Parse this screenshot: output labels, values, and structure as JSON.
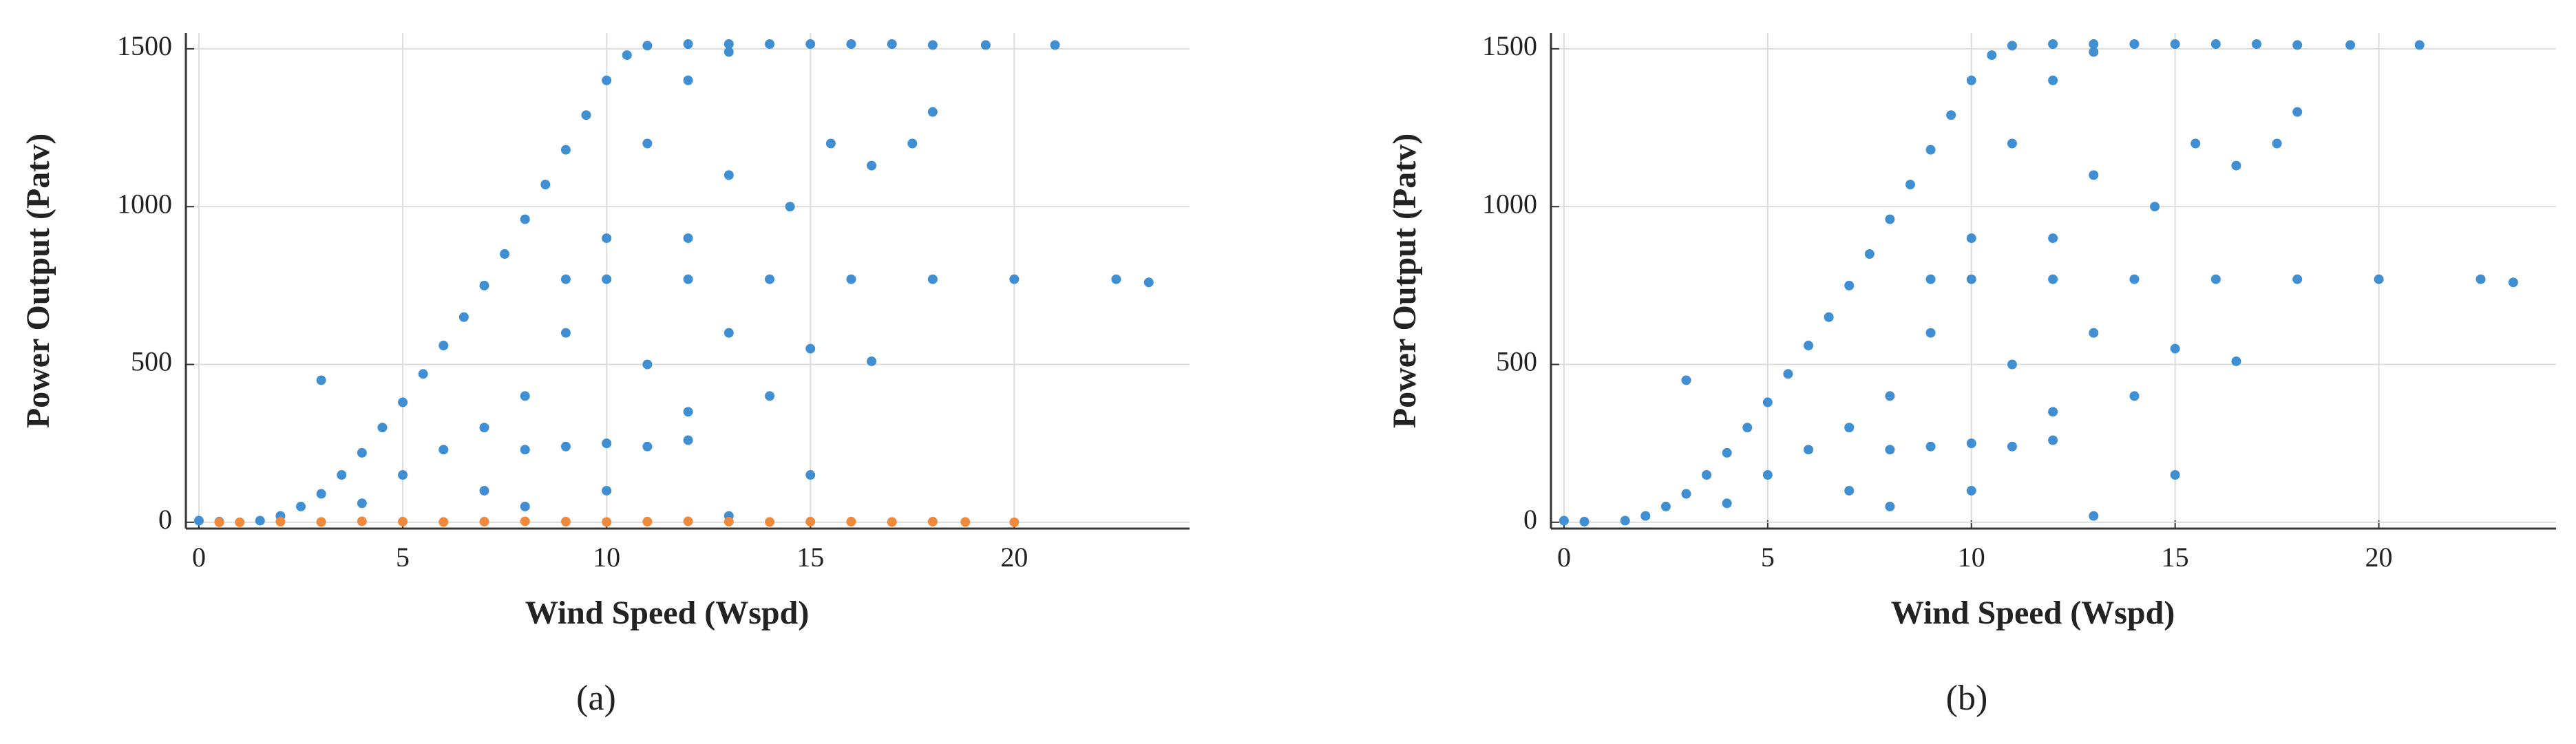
{
  "chart_data": [
    {
      "type": "scatter",
      "xlabel": "Wind Speed (Wspd)",
      "ylabel": "Power Output (Patv)",
      "caption": "(a)",
      "xlim": [
        -0.32,
        24.3
      ],
      "ylim": [
        -20,
        1550
      ],
      "xticks": [
        0,
        5,
        10,
        15,
        20
      ],
      "yticks": [
        0,
        500,
        1000,
        1500
      ],
      "grid": true,
      "series": [
        {
          "color": "#3f8fd2",
          "x": [
            0,
            0.5,
            1.5,
            2,
            2.5,
            3,
            3.5,
            4,
            4.5,
            5,
            5.5,
            6,
            6.5,
            7,
            7.5,
            8,
            8.5,
            9,
            9.5,
            10,
            10.5,
            11,
            12,
            13,
            14,
            15,
            16,
            17,
            18,
            19.3,
            21,
            4,
            5,
            6,
            7,
            8,
            9,
            10,
            11,
            12,
            13,
            8,
            9,
            10,
            11,
            12,
            9,
            10,
            12,
            14,
            16,
            18,
            20,
            22.5,
            23.3,
            11,
            12,
            13,
            14,
            15,
            16.5,
            14.5,
            15.5,
            16.5,
            17.5,
            18,
            13,
            12,
            15,
            10,
            8,
            7,
            13,
            3
          ],
          "y": [
            5,
            2,
            5,
            20,
            50,
            90,
            150,
            220,
            300,
            380,
            470,
            560,
            650,
            750,
            850,
            960,
            1070,
            1180,
            1290,
            1400,
            1480,
            1510,
            1515,
            1515,
            1515,
            1515,
            1515,
            1515,
            1512,
            1512,
            1512,
            60,
            150,
            230,
            300,
            400,
            600,
            900,
            1200,
            1400,
            1490,
            230,
            240,
            250,
            240,
            260,
            770,
            770,
            770,
            770,
            770,
            770,
            770,
            770,
            760,
            500,
            350,
            600,
            400,
            550,
            510,
            1000,
            1200,
            1130,
            1200,
            1300,
            1100,
            900,
            150,
            100,
            50,
            100,
            20,
            450
          ]
        },
        {
          "color": "#ef8a3c",
          "x": [
            0.5,
            1,
            2,
            3,
            4,
            5,
            6,
            7,
            8,
            9,
            10,
            11,
            12,
            13,
            14,
            15,
            16,
            17,
            18,
            18.8,
            20
          ],
          "y": [
            0,
            0,
            2,
            1,
            3,
            2,
            1,
            2,
            3,
            2,
            1,
            2,
            3,
            2,
            1,
            2,
            2,
            1,
            2,
            1,
            0
          ]
        }
      ]
    },
    {
      "type": "scatter",
      "xlabel": "Wind Speed (Wspd)",
      "ylabel": "Power Output (Patv)",
      "caption": "(b)",
      "xlim": [
        -0.32,
        24.35
      ],
      "ylim": [
        -20,
        1550
      ],
      "xticks": [
        0,
        5,
        10,
        15,
        20
      ],
      "yticks": [
        0,
        500,
        1000,
        1500
      ],
      "grid": true,
      "series": [
        {
          "color": "#3f8fd2",
          "x": [
            0,
            0.5,
            1.5,
            2,
            2.5,
            3,
            3.5,
            4,
            4.5,
            5,
            5.5,
            6,
            6.5,
            7,
            7.5,
            8,
            8.5,
            9,
            9.5,
            10,
            10.5,
            11,
            12,
            13,
            14,
            15,
            16,
            17,
            18,
            19.3,
            21,
            4,
            5,
            6,
            7,
            8,
            9,
            10,
            11,
            12,
            13,
            8,
            9,
            10,
            11,
            12,
            9,
            10,
            12,
            14,
            16,
            18,
            20,
            22.5,
            23.3,
            11,
            12,
            13,
            14,
            15,
            16.5,
            14.5,
            15.5,
            16.5,
            17.5,
            18,
            13,
            12,
            15,
            10,
            8,
            7,
            13,
            3
          ],
          "y": [
            5,
            2,
            5,
            20,
            50,
            90,
            150,
            220,
            300,
            380,
            470,
            560,
            650,
            750,
            850,
            960,
            1070,
            1180,
            1290,
            1400,
            1480,
            1510,
            1515,
            1515,
            1515,
            1515,
            1515,
            1515,
            1512,
            1512,
            1512,
            60,
            150,
            230,
            300,
            400,
            600,
            900,
            1200,
            1400,
            1490,
            230,
            240,
            250,
            240,
            260,
            770,
            770,
            770,
            770,
            770,
            770,
            770,
            770,
            760,
            500,
            350,
            600,
            400,
            550,
            510,
            1000,
            1200,
            1130,
            1200,
            1300,
            1100,
            900,
            150,
            100,
            50,
            100,
            20,
            450
          ]
        }
      ]
    }
  ]
}
